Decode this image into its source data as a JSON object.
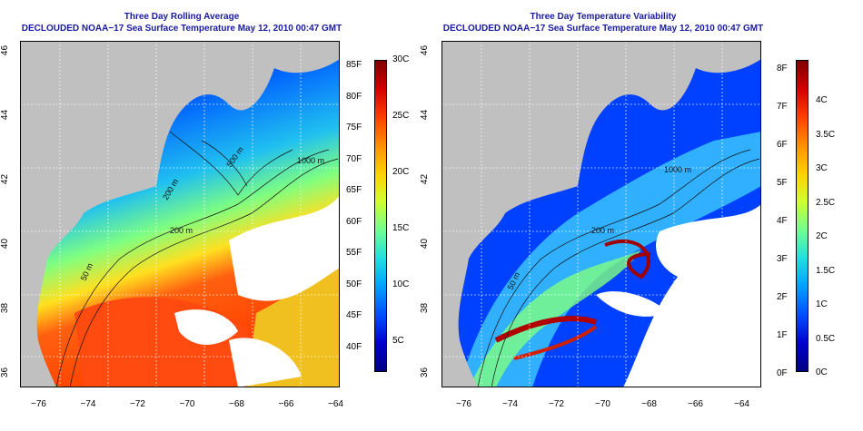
{
  "left_panel": {
    "title_line1": "Three Day Rolling Average",
    "title_line2": "DECLOUDED NOAA−17 Sea Surface Temperature May 12, 2010 00:47 GMT",
    "contour_labels": [
      "500 m",
      "200 m",
      "1000 m",
      "50 m",
      "200 m"
    ],
    "colorbar": {
      "fahrenheit_ticks": [
        "85F",
        "80F",
        "75F",
        "70F",
        "65F",
        "60F",
        "55F",
        "50F",
        "45F",
        "40F"
      ],
      "celsius_ticks": [
        "30C",
        "25C",
        "20C",
        "15C",
        "10C",
        "5C"
      ],
      "colors": [
        "#7f0000",
        "#d40000",
        "#ff4000",
        "#ff9000",
        "#ffd000",
        "#d0ff30",
        "#70ff90",
        "#20e0e0",
        "#00a0ff",
        "#0050ff",
        "#0000d0",
        "#00007f"
      ]
    }
  },
  "right_panel": {
    "title_line1": "Three Day Temperature Variability",
    "title_line2": "DECLOUDED NOAA−17 Sea Surface Temperature May 12, 2010 00:47 GMT",
    "contour_labels": [
      "200 m",
      "50 m",
      "1000 m"
    ],
    "colorbar": {
      "fahrenheit_ticks": [
        "8F",
        "7F",
        "6F",
        "5F",
        "4F",
        "3F",
        "2F",
        "1F",
        "0F"
      ],
      "celsius_ticks": [
        "4C",
        "3.5C",
        "3C",
        "2.5C",
        "2C",
        "1.5C",
        "1C",
        "0.5C",
        "0C"
      ],
      "colors": [
        "#7f0000",
        "#d40000",
        "#ff4000",
        "#ff9000",
        "#ffd000",
        "#d0ff30",
        "#70ff90",
        "#20e0e0",
        "#00a0ff",
        "#0050ff",
        "#0000d0",
        "#00007f"
      ]
    }
  },
  "axes": {
    "longitude_ticks": [
      "−76",
      "−74",
      "−72",
      "−70",
      "−68",
      "−66",
      "−64"
    ],
    "latitude_ticks": [
      "46",
      "44",
      "42",
      "40",
      "38",
      "36"
    ]
  },
  "colors": {
    "land": "#c0c0c0",
    "title": "#1a1aa0",
    "cloud": "#ffffff"
  }
}
